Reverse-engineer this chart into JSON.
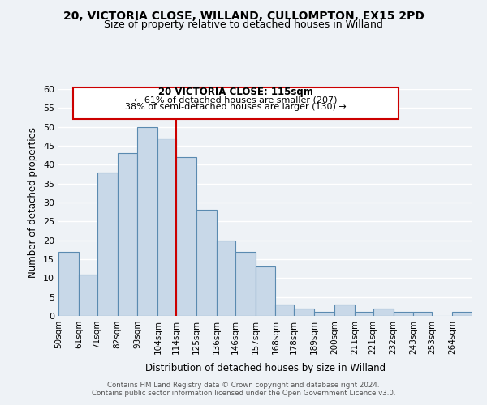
{
  "title": "20, VICTORIA CLOSE, WILLAND, CULLOMPTON, EX15 2PD",
  "subtitle": "Size of property relative to detached houses in Willand",
  "xlabel": "Distribution of detached houses by size in Willand",
  "ylabel": "Number of detached properties",
  "bin_labels": [
    "50sqm",
    "61sqm",
    "71sqm",
    "82sqm",
    "93sqm",
    "104sqm",
    "114sqm",
    "125sqm",
    "136sqm",
    "146sqm",
    "157sqm",
    "168sqm",
    "178sqm",
    "189sqm",
    "200sqm",
    "211sqm",
    "221sqm",
    "232sqm",
    "243sqm",
    "253sqm",
    "264sqm"
  ],
  "bin_edges": [
    50,
    61,
    71,
    82,
    93,
    104,
    114,
    125,
    136,
    146,
    157,
    168,
    178,
    189,
    200,
    211,
    221,
    232,
    243,
    253,
    264,
    275
  ],
  "bar_heights": [
    17,
    11,
    38,
    43,
    50,
    47,
    42,
    28,
    20,
    17,
    13,
    3,
    2,
    1,
    3,
    1,
    2,
    1,
    1,
    0,
    1
  ],
  "bar_color": "#c8d8e8",
  "bar_edgecolor": "#5a8ab0",
  "vline_x": 114,
  "vline_color": "#cc0000",
  "ylim": [
    0,
    60
  ],
  "yticks": [
    0,
    5,
    10,
    15,
    20,
    25,
    30,
    35,
    40,
    45,
    50,
    55,
    60
  ],
  "annotation_title": "20 VICTORIA CLOSE: 115sqm",
  "annotation_line1": "← 61% of detached houses are smaller (207)",
  "annotation_line2": "38% of semi-detached houses are larger (130) →",
  "annotation_box_edgecolor": "#cc0000",
  "footer_line1": "Contains HM Land Registry data © Crown copyright and database right 2024.",
  "footer_line2": "Contains public sector information licensed under the Open Government Licence v3.0.",
  "title_fontsize": 10,
  "subtitle_fontsize": 9,
  "background_color": "#eef2f6",
  "grid_color": "#ffffff"
}
